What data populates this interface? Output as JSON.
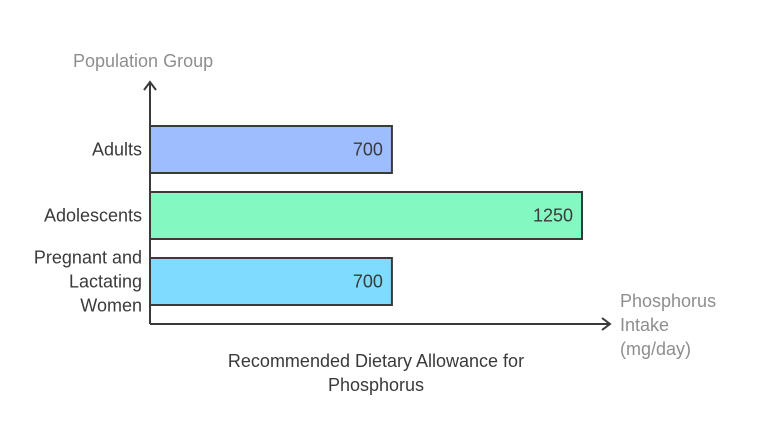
{
  "chart_data": {
    "type": "bar",
    "orientation": "horizontal",
    "title": "Recommended Dietary Allowance for Phosphorus",
    "ylabel": "Population Group",
    "xlabel": "Phosphorus Intake (mg/day)",
    "categories": [
      "Adults",
      "Adolescents",
      "Pregnant and Lactating Women"
    ],
    "values": [
      700,
      1250,
      700
    ],
    "colors": [
      "#9ebdff",
      "#84f8c1",
      "#7ddcff"
    ],
    "xlim": [
      0,
      1250
    ],
    "grid": false,
    "legend": "none"
  }
}
